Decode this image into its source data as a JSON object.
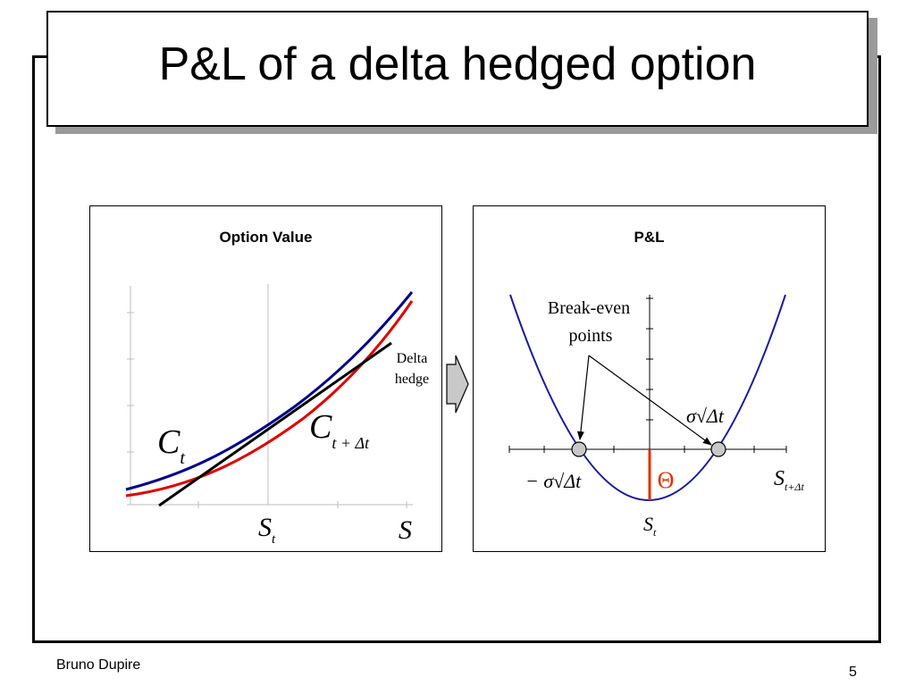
{
  "slide": {
    "title": "P&L of a delta hedged option",
    "footer_author": "Bruno Dupire",
    "page_number": "5"
  },
  "left_panel": {
    "title": "Option Value",
    "curve_label_now_main": "C",
    "curve_label_now_sub": "t",
    "curve_label_later_main": "C",
    "curve_label_later_sub": "t + Δt",
    "hedge_label_line1": "Delta",
    "hedge_label_line2": "hedge",
    "x_marker_main": "S",
    "x_marker_sub": "t",
    "x_axis_label": "S",
    "colors": {
      "option_now": "#00008b",
      "option_later": "#e00000",
      "hedge": "#000000"
    }
  },
  "right_panel": {
    "title": "P&L",
    "break_even_line1": "Break-even",
    "break_even_line2": "points",
    "upper_break_even": "σ√Δt",
    "lower_break_even": "− σ√Δt",
    "theta_label": "Θ",
    "x_axis_label_main": "S",
    "x_axis_label_sub": "t+Δt",
    "x_marker_main": "S",
    "x_marker_sub": "t",
    "colors": {
      "parabola": "#1a1a9a",
      "theta": "#e03000",
      "points": "#c8c8c8"
    }
  }
}
